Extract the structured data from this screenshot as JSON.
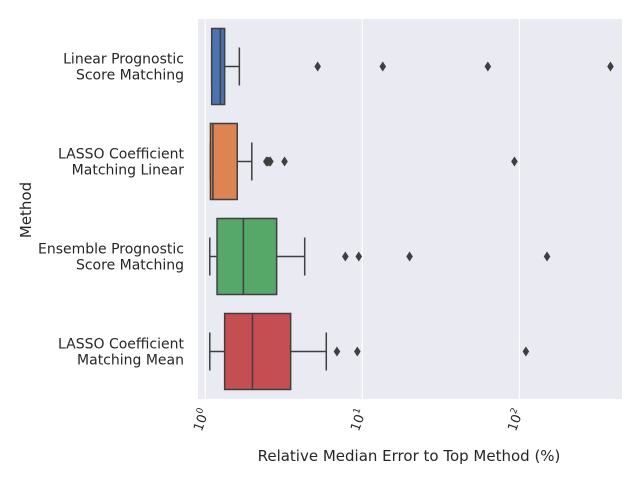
{
  "chart_data": {
    "type": "boxplot",
    "title": "",
    "xlabel": "Relative Median Error to Top Method (%)",
    "ylabel": "Method",
    "x_scale": "log",
    "x_ticks": [
      {
        "value": 1,
        "base": "10",
        "exp": "0"
      },
      {
        "value": 10,
        "base": "10",
        "exp": "1"
      },
      {
        "value": 100,
        "base": "10",
        "exp": "2"
      }
    ],
    "xlim": [
      0.9,
      450
    ],
    "grid": true,
    "legend": "none",
    "categories": [
      {
        "label_lines": [
          "Linear Prognostic",
          "Score Matching"
        ],
        "color": "#4c72b0",
        "whisker_low": 1.1,
        "q1": 1.1,
        "median": 1.25,
        "q3": 1.33,
        "whisker_high": 1.65,
        "outliers": [
          5.2,
          13.5,
          63,
          380
        ]
      },
      {
        "label_lines": [
          "LASSO Coefficient",
          "Matching Linear"
        ],
        "color": "#dd8452",
        "whisker_low": 1.08,
        "q1": 1.08,
        "median": 1.12,
        "q3": 1.6,
        "whisker_high": 1.98,
        "outliers": [
          2.45,
          2.5,
          2.55,
          2.6,
          3.2,
          93
        ]
      },
      {
        "label_lines": [
          "Ensemble Prognostic",
          "Score Matching"
        ],
        "color": "#55a868",
        "whisker_low": 1.07,
        "q1": 1.19,
        "median": 1.75,
        "q3": 2.85,
        "whisker_high": 4.3,
        "outliers": [
          7.8,
          9.5,
          20,
          150
        ]
      },
      {
        "label_lines": [
          "LASSO Coefficient",
          "Matching Mean"
        ],
        "color": "#c44e52",
        "whisker_low": 1.07,
        "q1": 1.33,
        "median": 2.0,
        "q3": 3.5,
        "whisker_high": 5.9,
        "outliers": [
          6.9,
          9.3,
          110
        ]
      }
    ]
  }
}
